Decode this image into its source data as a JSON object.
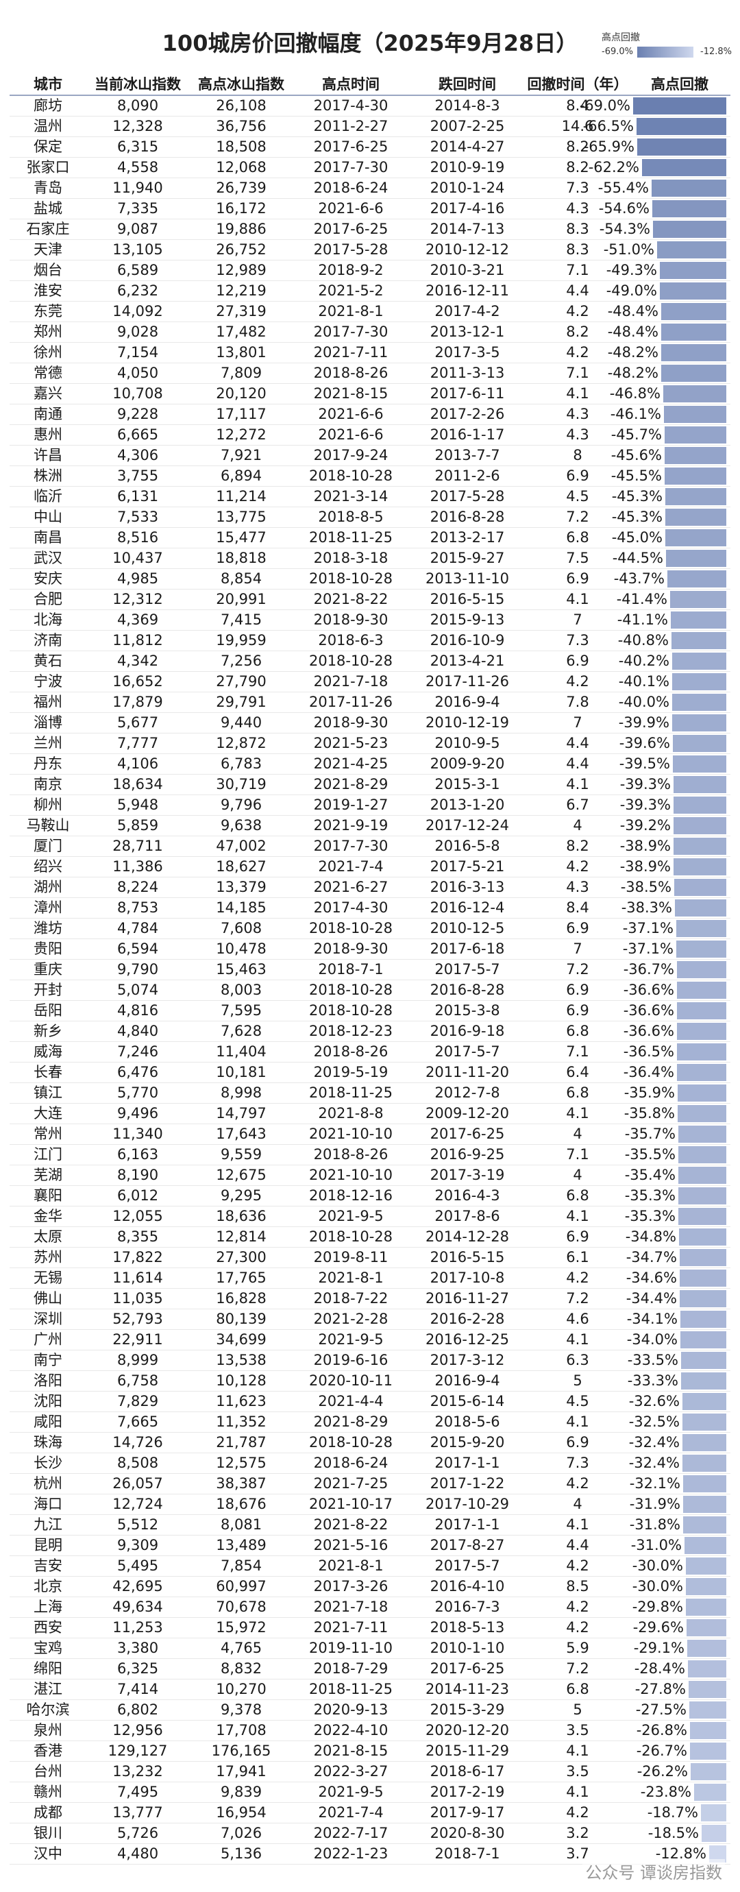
{
  "title": "100城房价回撤幅度（2025年9月28日）",
  "legend": {
    "title": "高点回撤",
    "min_label": "-69.0%",
    "max_label": "-12.8%",
    "color_strong": "#6a7fb0",
    "color_weak": "#cfd8ee"
  },
  "watermark": "公众号 谭谈房指数",
  "chart_data": {
    "type": "table",
    "title": "100城房价回撤幅度（2025年9月28日）",
    "columns": [
      "城市",
      "当前冰山指数",
      "高点冰山指数",
      "高点时间",
      "跌回时间",
      "回撤时间（年）",
      "高点回撤"
    ],
    "color_scale": {
      "min": -69.0,
      "max": -12.8
    },
    "rows": [
      [
        "廊坊",
        "8,090",
        "26,108",
        "2017-4-30",
        "2014-8-3",
        "8.4",
        -69.0
      ],
      [
        "温州",
        "12,328",
        "36,756",
        "2011-2-27",
        "2007-2-25",
        "14.6",
        -66.5
      ],
      [
        "保定",
        "6,315",
        "18,508",
        "2017-6-25",
        "2014-4-27",
        "8.2",
        -65.9
      ],
      [
        "张家口",
        "4,558",
        "12,068",
        "2017-7-30",
        "2010-9-19",
        "8.2",
        -62.2
      ],
      [
        "青岛",
        "11,940",
        "26,739",
        "2018-6-24",
        "2010-1-24",
        "7.3",
        -55.4
      ],
      [
        "盐城",
        "7,335",
        "16,172",
        "2021-6-6",
        "2017-4-16",
        "4.3",
        -54.6
      ],
      [
        "石家庄",
        "9,087",
        "19,886",
        "2017-6-25",
        "2014-7-13",
        "8.3",
        -54.3
      ],
      [
        "天津",
        "13,105",
        "26,752",
        "2017-5-28",
        "2010-12-12",
        "8.3",
        -51.0
      ],
      [
        "烟台",
        "6,589",
        "12,989",
        "2018-9-2",
        "2010-3-21",
        "7.1",
        -49.3
      ],
      [
        "淮安",
        "6,232",
        "12,219",
        "2021-5-2",
        "2016-12-11",
        "4.4",
        -49.0
      ],
      [
        "东莞",
        "14,092",
        "27,319",
        "2021-8-1",
        "2017-4-2",
        "4.2",
        -48.4
      ],
      [
        "郑州",
        "9,028",
        "17,482",
        "2017-7-30",
        "2013-12-1",
        "8.2",
        -48.4
      ],
      [
        "徐州",
        "7,154",
        "13,801",
        "2021-7-11",
        "2017-3-5",
        "4.2",
        -48.2
      ],
      [
        "常德",
        "4,050",
        "7,809",
        "2018-8-26",
        "2011-3-13",
        "7.1",
        -48.2
      ],
      [
        "嘉兴",
        "10,708",
        "20,120",
        "2021-8-15",
        "2017-6-11",
        "4.1",
        -46.8
      ],
      [
        "南通",
        "9,228",
        "17,117",
        "2021-6-6",
        "2017-2-26",
        "4.3",
        -46.1
      ],
      [
        "惠州",
        "6,665",
        "12,272",
        "2021-6-6",
        "2016-1-17",
        "4.3",
        -45.7
      ],
      [
        "许昌",
        "4,306",
        "7,921",
        "2017-9-24",
        "2013-7-7",
        "8",
        -45.6
      ],
      [
        "株洲",
        "3,755",
        "6,894",
        "2018-10-28",
        "2011-2-6",
        "6.9",
        -45.5
      ],
      [
        "临沂",
        "6,131",
        "11,214",
        "2021-3-14",
        "2017-5-28",
        "4.5",
        -45.3
      ],
      [
        "中山",
        "7,533",
        "13,775",
        "2018-8-5",
        "2016-8-28",
        "7.2",
        -45.3
      ],
      [
        "南昌",
        "8,516",
        "15,477",
        "2018-11-25",
        "2013-2-17",
        "6.8",
        -45.0
      ],
      [
        "武汉",
        "10,437",
        "18,818",
        "2018-3-18",
        "2015-9-27",
        "7.5",
        -44.5
      ],
      [
        "安庆",
        "4,985",
        "8,854",
        "2018-10-28",
        "2013-11-10",
        "6.9",
        -43.7
      ],
      [
        "合肥",
        "12,312",
        "20,991",
        "2021-8-22",
        "2016-5-15",
        "4.1",
        -41.4
      ],
      [
        "北海",
        "4,369",
        "7,415",
        "2018-9-30",
        "2015-9-13",
        "7",
        -41.1
      ],
      [
        "济南",
        "11,812",
        "19,959",
        "2018-6-3",
        "2016-10-9",
        "7.3",
        -40.8
      ],
      [
        "黄石",
        "4,342",
        "7,256",
        "2018-10-28",
        "2013-4-21",
        "6.9",
        -40.2
      ],
      [
        "宁波",
        "16,652",
        "27,790",
        "2021-7-18",
        "2017-11-26",
        "4.2",
        -40.1
      ],
      [
        "福州",
        "17,879",
        "29,791",
        "2017-11-26",
        "2016-9-4",
        "7.8",
        -40.0
      ],
      [
        "淄博",
        "5,677",
        "9,440",
        "2018-9-30",
        "2010-12-19",
        "7",
        -39.9
      ],
      [
        "兰州",
        "7,777",
        "12,872",
        "2021-5-23",
        "2010-9-5",
        "4.4",
        -39.6
      ],
      [
        "丹东",
        "4,106",
        "6,783",
        "2021-4-25",
        "2009-9-20",
        "4.4",
        -39.5
      ],
      [
        "南京",
        "18,634",
        "30,719",
        "2021-8-29",
        "2015-3-1",
        "4.1",
        -39.3
      ],
      [
        "柳州",
        "5,948",
        "9,796",
        "2019-1-27",
        "2013-1-20",
        "6.7",
        -39.3
      ],
      [
        "马鞍山",
        "5,859",
        "9,638",
        "2021-9-19",
        "2017-12-24",
        "4",
        -39.2
      ],
      [
        "厦门",
        "28,711",
        "47,002",
        "2017-7-30",
        "2016-5-8",
        "8.2",
        -38.9
      ],
      [
        "绍兴",
        "11,386",
        "18,627",
        "2021-7-4",
        "2017-5-21",
        "4.2",
        -38.9
      ],
      [
        "湖州",
        "8,224",
        "13,379",
        "2021-6-27",
        "2016-3-13",
        "4.3",
        -38.5
      ],
      [
        "漳州",
        "8,753",
        "14,185",
        "2017-4-30",
        "2016-12-4",
        "8.4",
        -38.3
      ],
      [
        "潍坊",
        "4,784",
        "7,608",
        "2018-10-28",
        "2010-12-5",
        "6.9",
        -37.1
      ],
      [
        "贵阳",
        "6,594",
        "10,478",
        "2018-9-30",
        "2017-6-18",
        "7",
        -37.1
      ],
      [
        "重庆",
        "9,790",
        "15,463",
        "2018-7-1",
        "2017-5-7",
        "7.2",
        -36.7
      ],
      [
        "开封",
        "5,074",
        "8,003",
        "2018-10-28",
        "2016-8-28",
        "6.9",
        -36.6
      ],
      [
        "岳阳",
        "4,816",
        "7,595",
        "2018-10-28",
        "2015-3-8",
        "6.9",
        -36.6
      ],
      [
        "新乡",
        "4,840",
        "7,628",
        "2018-12-23",
        "2016-9-18",
        "6.8",
        -36.6
      ],
      [
        "威海",
        "7,246",
        "11,404",
        "2018-8-26",
        "2017-5-7",
        "7.1",
        -36.5
      ],
      [
        "长春",
        "6,476",
        "10,181",
        "2019-5-19",
        "2011-11-20",
        "6.4",
        -36.4
      ],
      [
        "镇江",
        "5,770",
        "8,998",
        "2018-11-25",
        "2012-7-8",
        "6.8",
        -35.9
      ],
      [
        "大连",
        "9,496",
        "14,797",
        "2021-8-8",
        "2009-12-20",
        "4.1",
        -35.8
      ],
      [
        "常州",
        "11,340",
        "17,643",
        "2021-10-10",
        "2017-6-25",
        "4",
        -35.7
      ],
      [
        "江门",
        "6,163",
        "9,559",
        "2018-8-26",
        "2016-9-25",
        "7.1",
        -35.5
      ],
      [
        "芜湖",
        "8,190",
        "12,675",
        "2021-10-10",
        "2017-3-19",
        "4",
        -35.4
      ],
      [
        "襄阳",
        "6,012",
        "9,295",
        "2018-12-16",
        "2016-4-3",
        "6.8",
        -35.3
      ],
      [
        "金华",
        "12,055",
        "18,636",
        "2021-9-5",
        "2017-8-6",
        "4.1",
        -35.3
      ],
      [
        "太原",
        "8,355",
        "12,814",
        "2018-10-28",
        "2014-12-28",
        "6.9",
        -34.8
      ],
      [
        "苏州",
        "17,822",
        "27,300",
        "2019-8-11",
        "2016-5-15",
        "6.1",
        -34.7
      ],
      [
        "无锡",
        "11,614",
        "17,765",
        "2021-8-1",
        "2017-10-8",
        "4.2",
        -34.6
      ],
      [
        "佛山",
        "11,035",
        "16,828",
        "2018-7-22",
        "2016-11-27",
        "7.2",
        -34.4
      ],
      [
        "深圳",
        "52,793",
        "80,139",
        "2021-2-28",
        "2016-2-28",
        "4.6",
        -34.1
      ],
      [
        "广州",
        "22,911",
        "34,699",
        "2021-9-5",
        "2016-12-25",
        "4.1",
        -34.0
      ],
      [
        "南宁",
        "8,999",
        "13,538",
        "2019-6-16",
        "2017-3-12",
        "6.3",
        -33.5
      ],
      [
        "洛阳",
        "6,758",
        "10,128",
        "2020-10-11",
        "2016-9-4",
        "5",
        -33.3
      ],
      [
        "沈阳",
        "7,829",
        "11,623",
        "2021-4-4",
        "2015-6-14",
        "4.5",
        -32.6
      ],
      [
        "咸阳",
        "7,665",
        "11,352",
        "2021-8-29",
        "2018-5-6",
        "4.1",
        -32.5
      ],
      [
        "珠海",
        "14,726",
        "21,787",
        "2018-10-28",
        "2015-9-20",
        "6.9",
        -32.4
      ],
      [
        "长沙",
        "8,508",
        "12,575",
        "2018-6-24",
        "2017-1-1",
        "7.3",
        -32.4
      ],
      [
        "杭州",
        "26,057",
        "38,387",
        "2021-7-25",
        "2017-1-22",
        "4.2",
        -32.1
      ],
      [
        "海口",
        "12,724",
        "18,676",
        "2021-10-17",
        "2017-10-29",
        "4",
        -31.9
      ],
      [
        "九江",
        "5,512",
        "8,081",
        "2021-8-22",
        "2017-1-1",
        "4.1",
        -31.8
      ],
      [
        "昆明",
        "9,309",
        "13,489",
        "2021-5-16",
        "2017-8-27",
        "4.4",
        -31.0
      ],
      [
        "吉安",
        "5,495",
        "7,854",
        "2021-8-1",
        "2017-5-7",
        "4.2",
        -30.0
      ],
      [
        "北京",
        "42,695",
        "60,997",
        "2017-3-26",
        "2016-4-10",
        "8.5",
        -30.0
      ],
      [
        "上海",
        "49,634",
        "70,678",
        "2021-7-18",
        "2016-7-3",
        "4.2",
        -29.8
      ],
      [
        "西安",
        "11,253",
        "15,972",
        "2021-7-11",
        "2018-5-13",
        "4.2",
        -29.6
      ],
      [
        "宝鸡",
        "3,380",
        "4,765",
        "2019-11-10",
        "2010-1-10",
        "5.9",
        -29.1
      ],
      [
        "绵阳",
        "6,325",
        "8,832",
        "2018-7-29",
        "2017-6-25",
        "7.2",
        -28.4
      ],
      [
        "湛江",
        "7,414",
        "10,270",
        "2018-11-25",
        "2014-11-23",
        "6.8",
        -27.8
      ],
      [
        "哈尔滨",
        "6,802",
        "9,378",
        "2020-9-13",
        "2015-3-29",
        "5",
        -27.5
      ],
      [
        "泉州",
        "12,956",
        "17,708",
        "2022-4-10",
        "2020-12-20",
        "3.5",
        -26.8
      ],
      [
        "香港",
        "129,127",
        "176,165",
        "2021-8-15",
        "2015-11-29",
        "4.1",
        -26.7
      ],
      [
        "台州",
        "13,232",
        "17,941",
        "2022-3-27",
        "2018-6-17",
        "3.5",
        -26.2
      ],
      [
        "赣州",
        "7,495",
        "9,839",
        "2021-9-5",
        "2017-2-19",
        "4.1",
        -23.8
      ],
      [
        "成都",
        "13,777",
        "16,954",
        "2021-7-4",
        "2017-9-17",
        "4.2",
        -18.7
      ],
      [
        "银川",
        "5,726",
        "7,026",
        "2022-7-17",
        "2020-8-30",
        "3.2",
        -18.5
      ],
      [
        "汉中",
        "4,480",
        "5,136",
        "2022-1-23",
        "2018-7-1",
        "3.7",
        -12.8
      ]
    ]
  }
}
